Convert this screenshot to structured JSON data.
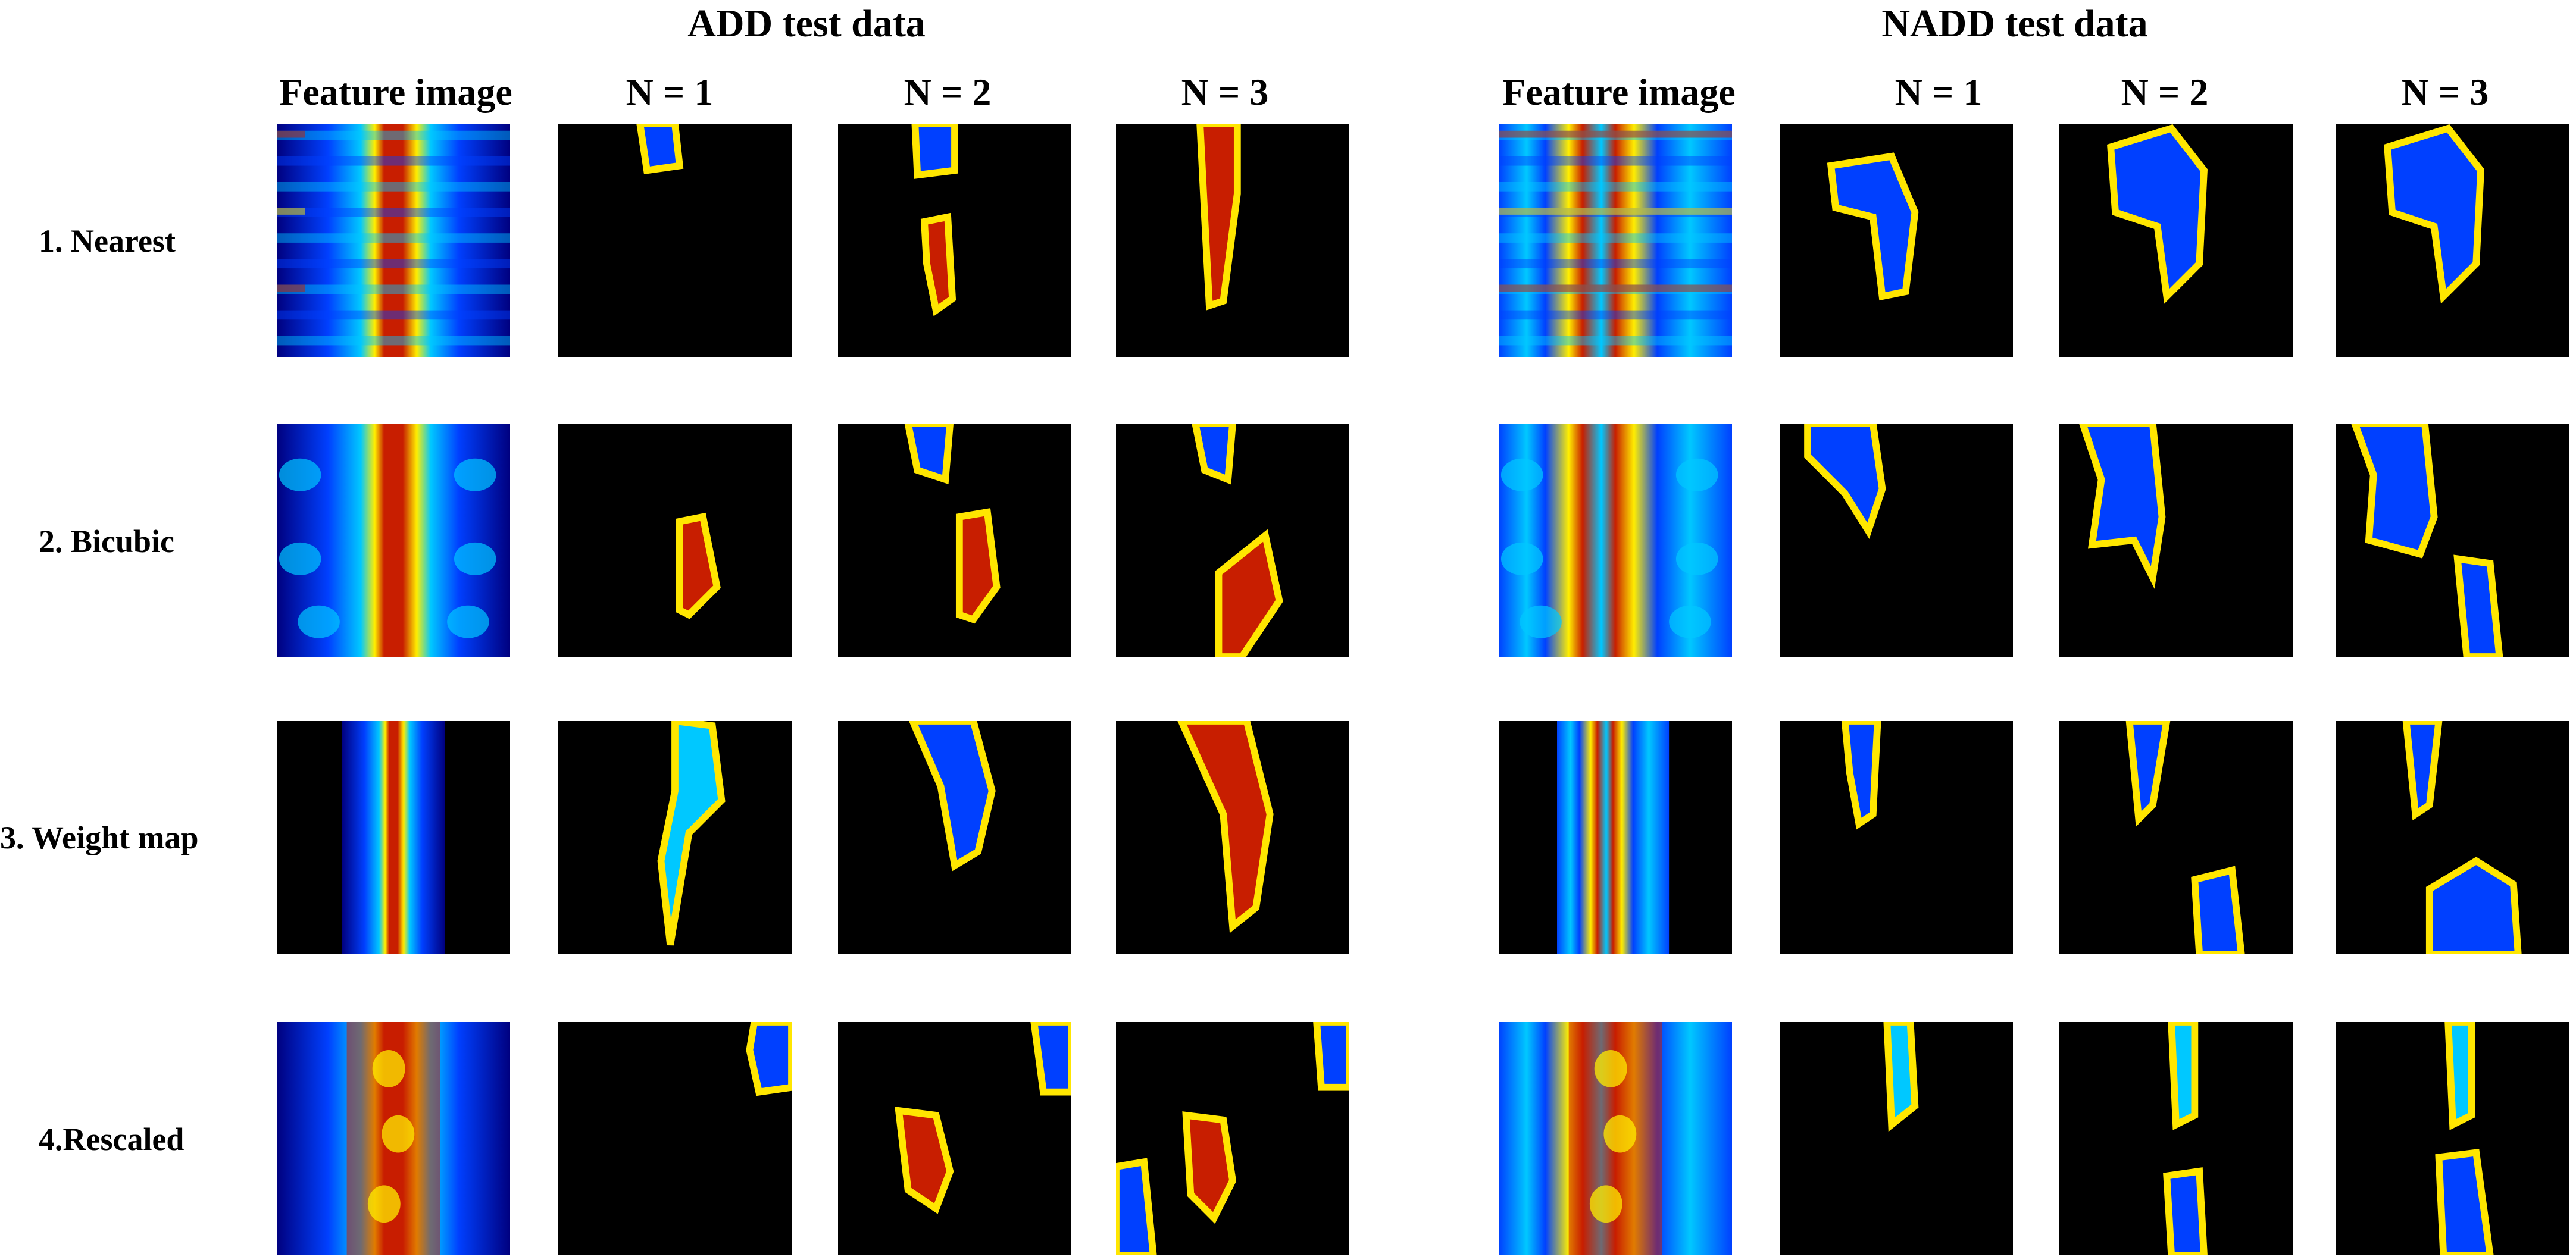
{
  "groups": [
    {
      "title": "ADD test data",
      "columns": [
        "Feature image",
        "N = 1",
        "N = 2",
        "N = 3"
      ]
    },
    {
      "title": "NADD test data",
      "columns": [
        "Feature image",
        "N = 1",
        "N = 2",
        "N = 3"
      ]
    }
  ],
  "rows": [
    {
      "label": "1. Nearest"
    },
    {
      "label": "2. Bicubic"
    },
    {
      "label": "3. Weight map"
    },
    {
      "label": "4.Rescaled"
    }
  ],
  "colors": {
    "background": "#000000",
    "jet_dark_blue": "#00007f",
    "jet_blue": "#0040ff",
    "jet_cyan": "#00c8ff",
    "jet_green": "#60ff90",
    "jet_yellow": "#ffee00",
    "jet_red": "#c81e00",
    "jet_dark_red": "#8a0000",
    "outline": "#ffe600"
  },
  "panel_kinds": {
    "feature": [
      "nearest-feature",
      "bicubic-feature",
      "weightmap-feature",
      "rescaled-feature"
    ],
    "heatmap": "relevance-heatmap"
  }
}
